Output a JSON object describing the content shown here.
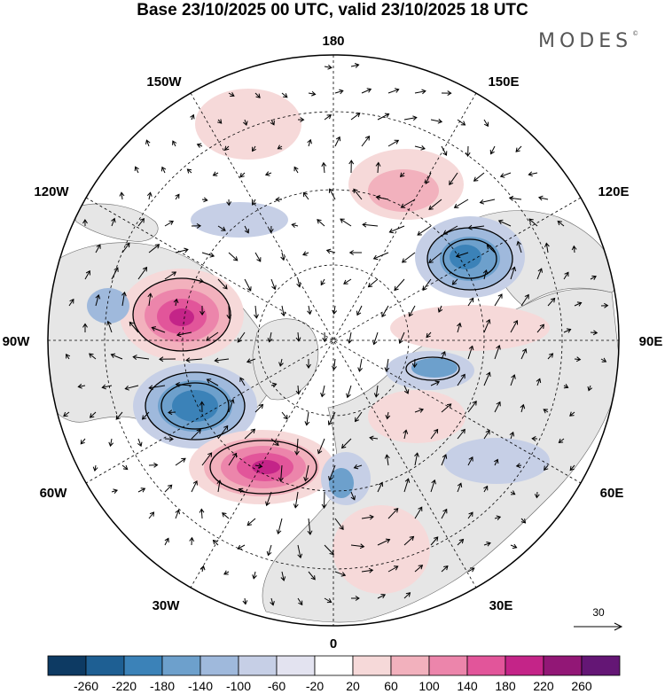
{
  "header": {
    "title": "Base 23/10/2025 00 UTC, valid 23/10/2025 18 UTC",
    "brand": "MODES",
    "brand_mark": "©"
  },
  "map": {
    "projection": "north-polar-stereographic",
    "longitude_labels": {
      "top": "180",
      "upper_left": "150W",
      "upper_right": "150E",
      "mid_upper_left": "120W",
      "mid_upper_right": "120E",
      "left": "90W",
      "right": "90E",
      "mid_lower_left": "60W",
      "mid_lower_right": "60E",
      "lower_left": "30W",
      "lower_right": "30E",
      "bottom": "0"
    },
    "wind_reference": {
      "value": "30"
    },
    "anomaly_centers": [
      {
        "name": "positive-north-america",
        "sign": "positive",
        "peak": 240
      },
      {
        "name": "negative-hudson-bay",
        "sign": "negative",
        "peak": -200
      },
      {
        "name": "positive-north-atlantic",
        "sign": "positive",
        "peak": 240
      },
      {
        "name": "negative-east-siberia",
        "sign": "negative",
        "peak": -180
      },
      {
        "name": "negative-central-siberia",
        "sign": "negative",
        "peak": -120
      },
      {
        "name": "negative-scandinavia",
        "sign": "negative",
        "peak": -120
      }
    ]
  },
  "colorbar": {
    "colors": [
      "#0d3a63",
      "#1e5f93",
      "#3b82b8",
      "#6da0cc",
      "#9fb9dc",
      "#c6cfe6",
      "#e3e3f0",
      "#ffffff",
      "#f6d9d9",
      "#f2b1bd",
      "#ec85ab",
      "#e2559a",
      "#c42488",
      "#921776",
      "#641675"
    ],
    "labels": [
      "-260",
      "-220",
      "-180",
      "-140",
      "-100",
      "-60",
      "-20",
      "20",
      "60",
      "100",
      "140",
      "180",
      "220",
      "260"
    ]
  }
}
